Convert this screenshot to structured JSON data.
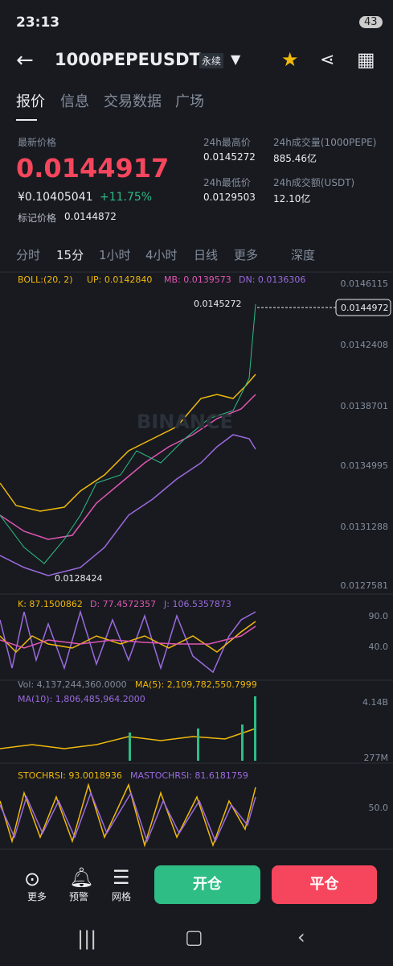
{
  "status_bar": {
    "time": "23:13",
    "battery": "43"
  },
  "header": {
    "symbol": "1000PEPEUSDT",
    "tag": "永续"
  },
  "tabs": [
    "报价",
    "信息",
    "交易数据",
    "广场"
  ],
  "price": {
    "label": "最新价格",
    "last": "0.0144917",
    "cny": "¥0.10405041",
    "change": "+11.75%",
    "mark_label": "标记价格",
    "mark": "0.0144872"
  },
  "stats": [
    {
      "label": "24h最高价",
      "value": "0.0145272"
    },
    {
      "label": "24h成交量(1000PEPE)",
      "value": "885.46亿"
    },
    {
      "label": "24h最低价",
      "value": "0.0129503"
    },
    {
      "label": "24h成交额(USDT)",
      "value": "12.10亿"
    }
  ],
  "intervals": [
    "分时",
    "15分",
    "1小时",
    "4小时",
    "日线",
    "更多",
    "深度"
  ],
  "boll": {
    "label": "BOLL:(20, 2)",
    "up": "UP: 0.0142840",
    "mb": "MB: 0.0139573",
    "dn": "DN: 0.0136306"
  },
  "price_axis": [
    "0.0146115",
    "0.0142408",
    "0.0138701",
    "0.0134995",
    "0.0131288",
    "0.0127581"
  ],
  "markers": {
    "current": "0.0144972",
    "high": "0.0145272",
    "low": "0.0128424",
    "watermark": "BINANCE"
  },
  "kdj": {
    "k": "K: 87.1500862",
    "d": "D: 77.4572357",
    "j": "J: 106.5357873",
    "axis": [
      "90.0",
      "40.0"
    ]
  },
  "volume": {
    "vol": "Vol: 4,137,244,360.0000",
    "ma5": "MA(5): 2,109,782,550.7999",
    "ma10": "MA(10): 1,806,485,964.2000",
    "axis": [
      "4.14B",
      "277M"
    ]
  },
  "stochrsi": {
    "value": "STOCHRSI: 93.0018936",
    "ma": "MASTOCHRSI: 81.6181759",
    "axis": [
      "50.0"
    ]
  },
  "bottom": {
    "tools": [
      "更多",
      "预警",
      "网格"
    ],
    "open": "开仓",
    "close": "平仓"
  }
}
